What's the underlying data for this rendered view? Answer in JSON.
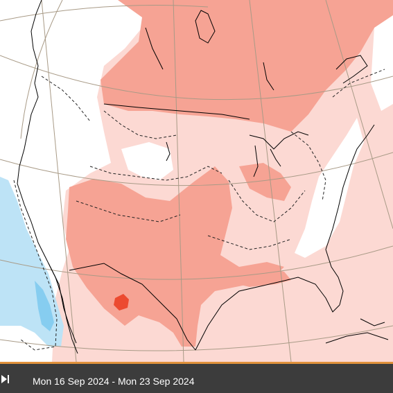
{
  "map": {
    "colors": {
      "background": "#ffffff",
      "anomaly_warm_light": "#fcd9d3",
      "anomaly_warm_medium": "#f6a394",
      "anomaly_warm_strong": "#ec4a30",
      "anomaly_cool_light": "#bde3f6",
      "anomaly_cool_medium": "#86cdf0",
      "coastline": "#000000",
      "gridline": "#a89a86",
      "contour_dashed": "#222222"
    }
  },
  "footer": {
    "play_icon": "skip-forward-icon",
    "date_range": "Mon 16 Sep 2024 - Mon 23 Sep 2024",
    "bar_color": "#3c3c3c",
    "accent_color": "#e0913b"
  }
}
